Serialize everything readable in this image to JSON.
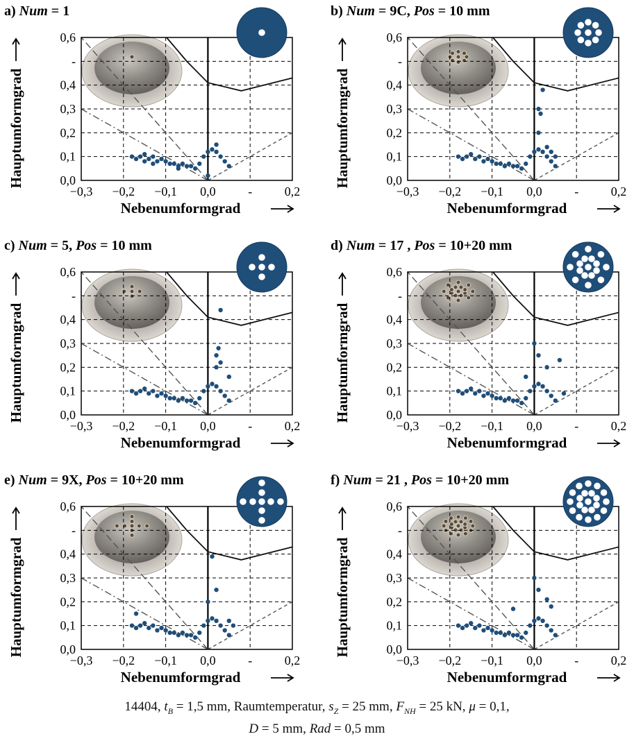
{
  "chart_data": [
    {
      "type": "scatter",
      "title_parts": [
        "a) ",
        "Num",
        " = 1"
      ],
      "xlabel": "Nebenumformgrad",
      "ylabel": "Hauptumformgrad",
      "color": "#1f4e79",
      "grid": true,
      "xlim": [
        -0.3,
        0.2
      ],
      "ylim": [
        0,
        0.6
      ],
      "xticks": [
        {
          "value": -0.3,
          "label": "−0,3"
        },
        {
          "value": -0.2,
          "label": "−0,2"
        },
        {
          "value": -0.1,
          "label": "−0,1"
        },
        {
          "value": 0,
          "label": "0,0"
        },
        {
          "value": 0.1,
          "label": "-"
        },
        {
          "value": 0.2,
          "label": "0,2"
        }
      ],
      "yticks": [
        {
          "value": 0,
          "label": "0,0"
        },
        {
          "value": 0.1,
          "label": "0,1"
        },
        {
          "value": 0.2,
          "label": "0,2"
        },
        {
          "value": 0.3,
          "label": "0,3"
        },
        {
          "value": 0.4,
          "label": "0,4"
        },
        {
          "value": 0.5,
          "label": "-"
        },
        {
          "value": 0.6,
          "label": "0,6"
        }
      ],
      "x": [
        -0.18,
        -0.17,
        -0.16,
        -0.15,
        -0.14,
        -0.13,
        -0.12,
        -0.11,
        -0.1,
        -0.09,
        -0.08,
        -0.07,
        -0.06,
        -0.05,
        -0.04,
        -0.03,
        -0.02,
        -0.01,
        0,
        0.01,
        0.02,
        0.03,
        0.04,
        0.05,
        0,
        -0.13,
        -0.07,
        0.02,
        -0.15
      ],
      "values": [
        0.1,
        0.09,
        0.1,
        0.11,
        0.09,
        0.1,
        0.08,
        0.09,
        0.08,
        0.07,
        0.07,
        0.06,
        0.07,
        0.06,
        0.06,
        0.05,
        0.07,
        0.1,
        0.12,
        0.13,
        0.12,
        0.1,
        0.08,
        0.06,
        0.02,
        0.07,
        0.05,
        0.15,
        0.08
      ],
      "flc": {
        "x": [
          -0.098,
          -0.05,
          0,
          0.079,
          0.2
        ],
        "values": [
          0.6,
          0.5,
          0.41,
          0.376,
          0.43
        ]
      }
    },
    {
      "type": "scatter",
      "title_parts": [
        "b) ",
        "Num",
        " = 9C, ",
        "Pos",
        " = 10 mm"
      ],
      "xlabel": "Nebenumformgrad",
      "ylabel": "Hauptumformgrad",
      "color": "#1f4e79",
      "grid": true,
      "xlim": [
        -0.3,
        0.2
      ],
      "ylim": [
        0,
        0.6
      ],
      "xticks": [
        {
          "value": -0.3,
          "label": "−0,3"
        },
        {
          "value": -0.2,
          "label": "−0,2"
        },
        {
          "value": -0.1,
          "label": "−0,1"
        },
        {
          "value": 0,
          "label": "0,0"
        },
        {
          "value": 0.1,
          "label": "-"
        },
        {
          "value": 0.2,
          "label": "0,2"
        }
      ],
      "yticks": [
        {
          "value": 0,
          "label": "0,0"
        },
        {
          "value": 0.1,
          "label": "0,1"
        },
        {
          "value": 0.2,
          "label": "0,2"
        },
        {
          "value": 0.3,
          "label": "0,3"
        },
        {
          "value": 0.4,
          "label": "0,4"
        },
        {
          "value": 0.5,
          "label": "-"
        },
        {
          "value": 0.6,
          "label": "0,6"
        }
      ],
      "x": [
        -0.18,
        -0.17,
        -0.16,
        -0.15,
        -0.14,
        -0.13,
        -0.12,
        -0.11,
        -0.1,
        -0.09,
        -0.08,
        -0.07,
        -0.06,
        -0.05,
        -0.04,
        -0.03,
        -0.02,
        -0.01,
        0,
        0.01,
        0.02,
        0.03,
        0.04,
        0.05,
        0.01,
        0.015,
        0.02,
        0.01,
        0.03,
        0.04,
        0.05
      ],
      "values": [
        0.1,
        0.09,
        0.1,
        0.11,
        0.09,
        0.1,
        0.08,
        0.09,
        0.08,
        0.07,
        0.07,
        0.06,
        0.07,
        0.06,
        0.06,
        0.05,
        0.07,
        0.1,
        0.12,
        0.13,
        0.12,
        0.1,
        0.08,
        0.06,
        0.2,
        0.28,
        0.38,
        0.3,
        0.14,
        0.12,
        0.1
      ],
      "flc": {
        "x": [
          -0.098,
          -0.05,
          0,
          0.079,
          0.2
        ],
        "values": [
          0.6,
          0.5,
          0.41,
          0.376,
          0.43
        ]
      }
    },
    {
      "type": "scatter",
      "title_parts": [
        "c) ",
        "Num",
        " = 5, ",
        "Pos",
        " = 10 mm"
      ],
      "xlabel": "Nebenumformgrad",
      "ylabel": "Hauptumformgrad",
      "color": "#1f4e79",
      "grid": true,
      "xlim": [
        -0.3,
        0.2
      ],
      "ylim": [
        0,
        0.6
      ],
      "xticks": [
        {
          "value": -0.3,
          "label": "−0,3"
        },
        {
          "value": -0.2,
          "label": "−0,2"
        },
        {
          "value": -0.1,
          "label": "−0,1"
        },
        {
          "value": 0,
          "label": "0,0"
        },
        {
          "value": 0.1,
          "label": "-"
        },
        {
          "value": 0.2,
          "label": "0,2"
        }
      ],
      "yticks": [
        {
          "value": 0,
          "label": "0,0"
        },
        {
          "value": 0.1,
          "label": "0,1"
        },
        {
          "value": 0.2,
          "label": "0,2"
        },
        {
          "value": 0.3,
          "label": "0,3"
        },
        {
          "value": 0.4,
          "label": "0,4"
        },
        {
          "value": 0.5,
          "label": "-"
        },
        {
          "value": 0.6,
          "label": "0,6"
        }
      ],
      "x": [
        -0.18,
        -0.17,
        -0.16,
        -0.15,
        -0.14,
        -0.13,
        -0.12,
        -0.11,
        -0.1,
        -0.09,
        -0.08,
        -0.07,
        -0.06,
        -0.05,
        -0.04,
        -0.03,
        -0.02,
        -0.01,
        0,
        0.01,
        0.02,
        0.03,
        0.04,
        0.05,
        0.02,
        0.025,
        0.03,
        0.02,
        0.03,
        0.05
      ],
      "values": [
        0.1,
        0.09,
        0.1,
        0.11,
        0.09,
        0.1,
        0.08,
        0.09,
        0.08,
        0.07,
        0.07,
        0.06,
        0.07,
        0.06,
        0.06,
        0.05,
        0.07,
        0.1,
        0.12,
        0.13,
        0.12,
        0.1,
        0.08,
        0.06,
        0.25,
        0.28,
        0.44,
        0.2,
        0.22,
        0.16
      ],
      "flc": {
        "x": [
          -0.098,
          -0.05,
          0,
          0.079,
          0.2
        ],
        "values": [
          0.6,
          0.5,
          0.41,
          0.376,
          0.43
        ]
      }
    },
    {
      "type": "scatter",
      "title_parts": [
        "d) ",
        "Num",
        " = 17 , ",
        "Pos",
        " = 10+20 mm"
      ],
      "xlabel": "Nebenumformgrad",
      "ylabel": "Hauptumformgrad",
      "color": "#1f4e79",
      "grid": true,
      "xlim": [
        -0.3,
        0.2
      ],
      "ylim": [
        0,
        0.6
      ],
      "xticks": [
        {
          "value": -0.3,
          "label": "−0,3"
        },
        {
          "value": -0.2,
          "label": "−0,2"
        },
        {
          "value": -0.1,
          "label": "−0,1"
        },
        {
          "value": 0,
          "label": "0,0"
        },
        {
          "value": 0.1,
          "label": "-"
        },
        {
          "value": 0.2,
          "label": "0,2"
        }
      ],
      "yticks": [
        {
          "value": 0,
          "label": "0,0"
        },
        {
          "value": 0.1,
          "label": "0,1"
        },
        {
          "value": 0.2,
          "label": "0,2"
        },
        {
          "value": 0.3,
          "label": "0,3"
        },
        {
          "value": 0.4,
          "label": "0,4"
        },
        {
          "value": 0.5,
          "label": "-"
        },
        {
          "value": 0.6,
          "label": "0,6"
        }
      ],
      "x": [
        -0.18,
        -0.17,
        -0.16,
        -0.15,
        -0.14,
        -0.13,
        -0.12,
        -0.11,
        -0.1,
        -0.09,
        -0.08,
        -0.07,
        -0.06,
        -0.05,
        -0.04,
        -0.03,
        -0.02,
        -0.01,
        0,
        0.01,
        0.02,
        0.03,
        0.04,
        0.05,
        0,
        0.01,
        0.06,
        0.03,
        -0.02,
        0.07
      ],
      "values": [
        0.1,
        0.09,
        0.1,
        0.11,
        0.09,
        0.1,
        0.08,
        0.09,
        0.08,
        0.07,
        0.07,
        0.06,
        0.07,
        0.06,
        0.06,
        0.05,
        0.07,
        0.1,
        0.12,
        0.13,
        0.12,
        0.1,
        0.08,
        0.06,
        0.3,
        0.25,
        0.23,
        0.2,
        0.16,
        0.09
      ],
      "flc": {
        "x": [
          -0.098,
          -0.05,
          0,
          0.079,
          0.2
        ],
        "values": [
          0.6,
          0.5,
          0.41,
          0.376,
          0.43
        ]
      }
    },
    {
      "type": "scatter",
      "title_parts": [
        "e) ",
        "Num",
        " = 9X, ",
        "Pos",
        " = 10+20 mm"
      ],
      "xlabel": "Nebenumformgrad",
      "ylabel": "Hauptumformgrad",
      "color": "#1f4e79",
      "grid": true,
      "xlim": [
        -0.3,
        0.2
      ],
      "ylim": [
        0,
        0.6
      ],
      "xticks": [
        {
          "value": -0.3,
          "label": "−0,3"
        },
        {
          "value": -0.2,
          "label": "−0,2"
        },
        {
          "value": -0.1,
          "label": "−0,1"
        },
        {
          "value": 0,
          "label": "0,0"
        },
        {
          "value": 0.1,
          "label": "-"
        },
        {
          "value": 0.2,
          "label": "0,2"
        }
      ],
      "yticks": [
        {
          "value": 0,
          "label": "0,0"
        },
        {
          "value": 0.1,
          "label": "0,1"
        },
        {
          "value": 0.2,
          "label": "0,2"
        },
        {
          "value": 0.3,
          "label": "0,3"
        },
        {
          "value": 0.4,
          "label": "0,4"
        },
        {
          "value": 0.5,
          "label": "-"
        },
        {
          "value": 0.6,
          "label": "0,6"
        }
      ],
      "x": [
        -0.18,
        -0.17,
        -0.16,
        -0.15,
        -0.14,
        -0.13,
        -0.12,
        -0.11,
        -0.1,
        -0.09,
        -0.08,
        -0.07,
        -0.06,
        -0.05,
        -0.04,
        -0.03,
        -0.02,
        -0.01,
        0,
        0.01,
        0.02,
        0.03,
        0.04,
        0.05,
        0.01,
        0.02,
        0,
        0.05,
        0.06,
        -0.17
      ],
      "values": [
        0.1,
        0.09,
        0.1,
        0.11,
        0.09,
        0.1,
        0.08,
        0.09,
        0.08,
        0.07,
        0.07,
        0.06,
        0.07,
        0.06,
        0.06,
        0.05,
        0.07,
        0.1,
        0.12,
        0.13,
        0.12,
        0.1,
        0.08,
        0.06,
        0.39,
        0.25,
        0.2,
        0.12,
        0.1,
        0.15
      ],
      "flc": {
        "x": [
          -0.098,
          -0.05,
          0,
          0.079,
          0.2
        ],
        "values": [
          0.6,
          0.5,
          0.41,
          0.376,
          0.43
        ]
      }
    },
    {
      "type": "scatter",
      "title_parts": [
        "f) ",
        "Num",
        " = 21 , ",
        "Pos",
        " = 10+20 mm"
      ],
      "xlabel": "Nebenumformgrad",
      "ylabel": "Hauptumformgrad",
      "color": "#1f4e79",
      "grid": true,
      "xlim": [
        -0.3,
        0.2
      ],
      "ylim": [
        0,
        0.6
      ],
      "xticks": [
        {
          "value": -0.3,
          "label": "−0,3"
        },
        {
          "value": -0.2,
          "label": "−0,2"
        },
        {
          "value": -0.1,
          "label": "−0,1"
        },
        {
          "value": 0,
          "label": "0,0"
        },
        {
          "value": 0.1,
          "label": "-"
        },
        {
          "value": 0.2,
          "label": "0,2"
        }
      ],
      "yticks": [
        {
          "value": 0,
          "label": "0,0"
        },
        {
          "value": 0.1,
          "label": "0,1"
        },
        {
          "value": 0.2,
          "label": "0,2"
        },
        {
          "value": 0.3,
          "label": "0,3"
        },
        {
          "value": 0.4,
          "label": "0,4"
        },
        {
          "value": 0.5,
          "label": "-"
        },
        {
          "value": 0.6,
          "label": "0,6"
        }
      ],
      "x": [
        -0.18,
        -0.17,
        -0.16,
        -0.15,
        -0.14,
        -0.13,
        -0.12,
        -0.11,
        -0.1,
        -0.09,
        -0.08,
        -0.07,
        -0.06,
        -0.05,
        -0.04,
        -0.03,
        -0.02,
        -0.01,
        0,
        0.01,
        0.02,
        0.03,
        0.04,
        0.05,
        0,
        0.01,
        0.04,
        -0.05,
        0.03
      ],
      "values": [
        0.1,
        0.09,
        0.1,
        0.11,
        0.09,
        0.1,
        0.08,
        0.09,
        0.08,
        0.07,
        0.07,
        0.06,
        0.07,
        0.06,
        0.06,
        0.05,
        0.07,
        0.1,
        0.12,
        0.13,
        0.12,
        0.1,
        0.08,
        0.06,
        0.3,
        0.25,
        0.18,
        0.17,
        0.21
      ],
      "flc": {
        "x": [
          -0.098,
          -0.05,
          0,
          0.079,
          0.2
        ],
        "values": [
          0.6,
          0.5,
          0.41,
          0.376,
          0.43
        ]
      }
    }
  ],
  "caption": {
    "line1": [
      "14404, ",
      "t",
      "B",
      " = 1,5 mm, Raumtemperatur, ",
      "s",
      "Z",
      " = 25 mm, ",
      "F",
      "NH",
      " = 25 kN, ",
      "μ",
      " = 0,1,"
    ],
    "line2": [
      "D",
      " = 5 mm, ",
      "Rad",
      " = 0,5 mm"
    ]
  }
}
